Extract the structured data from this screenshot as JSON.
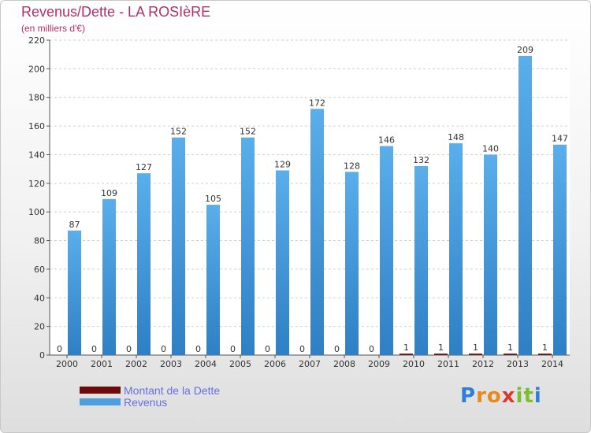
{
  "chart_data": {
    "type": "bar",
    "title": "Revenus/Dette - LA ROSIèRE",
    "subtitle": "(en milliers d'€)",
    "categories": [
      "2000",
      "2001",
      "2002",
      "2003",
      "2004",
      "2005",
      "2006",
      "2007",
      "2008",
      "2009",
      "2010",
      "2011",
      "2012",
      "2013",
      "2014"
    ],
    "series": [
      {
        "name": "Montant de la Dette",
        "color": "#6b0b0b",
        "values": [
          0,
          0,
          0,
          0,
          0,
          0,
          0,
          0,
          0,
          0,
          1,
          1,
          1,
          1,
          1
        ]
      },
      {
        "name": "Revenus",
        "color": "#4d9fe0",
        "values": [
          87,
          109,
          127,
          152,
          105,
          152,
          129,
          172,
          128,
          146,
          132,
          148,
          140,
          209,
          147
        ]
      }
    ],
    "ylim": [
      0,
      220
    ],
    "yticks": [
      0,
      20,
      40,
      60,
      80,
      100,
      120,
      140,
      160,
      180,
      200,
      220
    ],
    "grid": true,
    "legend": "bottom-left"
  },
  "logo": {
    "letters": [
      "P",
      "r",
      "o",
      "x",
      "i",
      "t",
      "i"
    ],
    "colors": [
      "#2f7fd6",
      "#e8891b",
      "#e8891b",
      "#d93b2b",
      "#7cbf2e",
      "#7cbf2e",
      "#2f7fd6"
    ]
  }
}
